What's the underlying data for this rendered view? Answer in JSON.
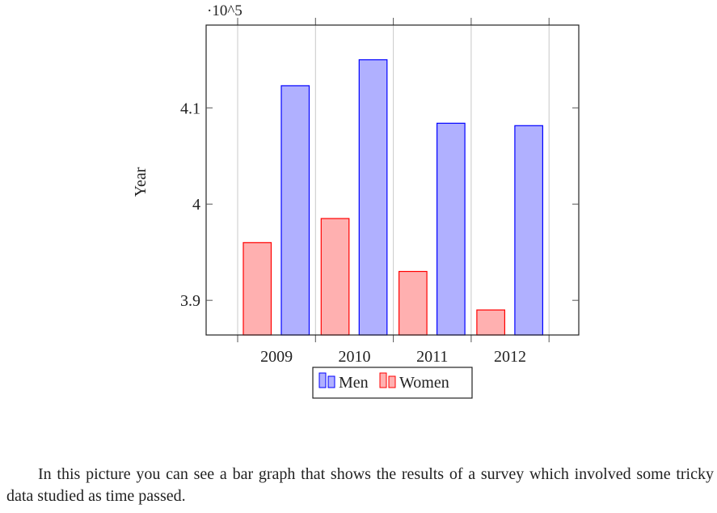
{
  "chart_data": {
    "type": "bar",
    "title": "",
    "xlabel": "",
    "ylabel": "Year",
    "scale_label": "·10^5",
    "categories": [
      "2009",
      "2010",
      "2011",
      "2012"
    ],
    "series": [
      {
        "name": "Women",
        "values": [
          396000,
          398500,
          393000,
          389000
        ],
        "fill": "#ffb0b0",
        "stroke": "#ff0000"
      },
      {
        "name": "Men",
        "values": [
          412300,
          415000,
          408400,
          408150
        ],
        "fill": "#b0b0ff",
        "stroke": "#0000ff"
      }
    ],
    "legend_order": [
      "Men",
      "Women"
    ],
    "yticks": [
      {
        "value": 390000,
        "label": "3.9"
      },
      {
        "value": 400000,
        "label": "4"
      },
      {
        "value": 410000,
        "label": "4.1"
      }
    ],
    "ylim": [
      386400,
      418600
    ],
    "grid": "vertical",
    "legend_position": "bottom"
  },
  "caption": "In this picture you can see a bar graph that shows the results of a survey which involved some tricky data studied as time passed."
}
